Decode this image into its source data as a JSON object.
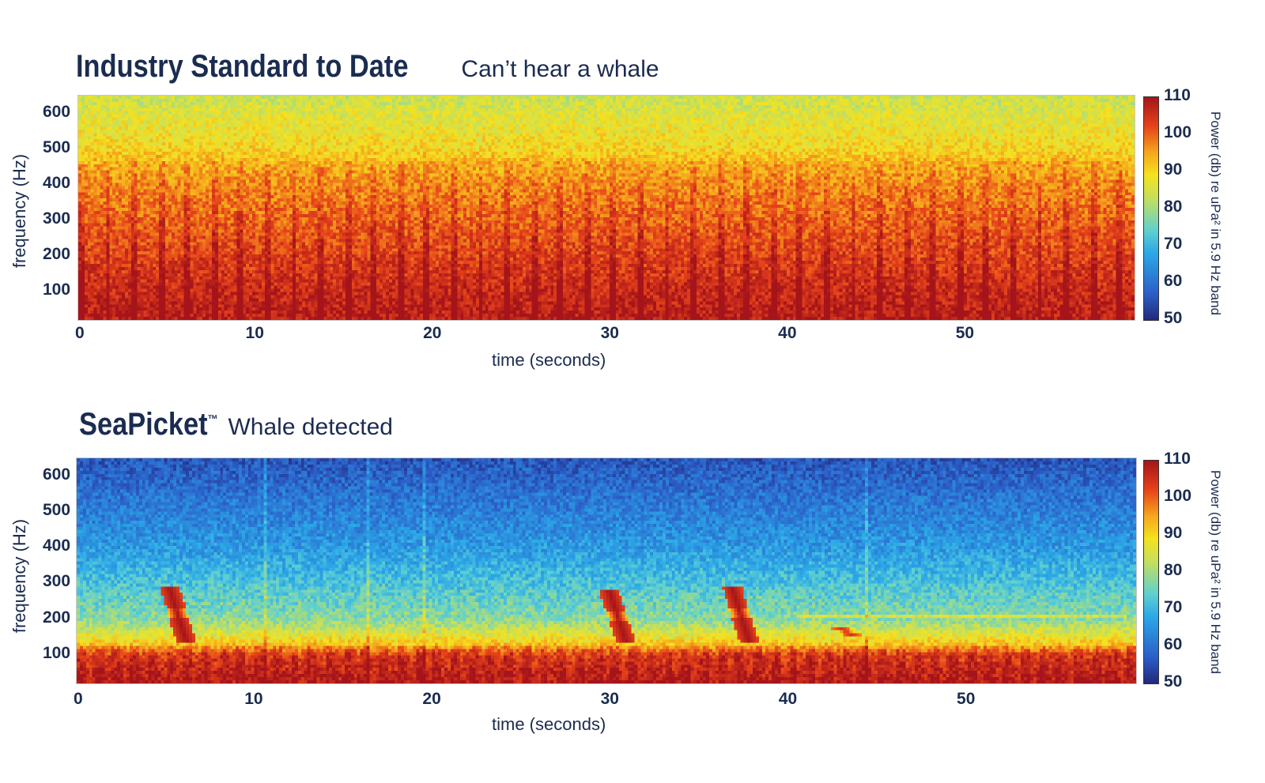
{
  "chart_data": [
    {
      "type": "heatmap",
      "title": "Industry Standard to Date",
      "subtitle": "Can’t hear a whale",
      "xlabel": "time (seconds)",
      "ylabel": "frequency (Hz)",
      "x_ticks": [
        0,
        10,
        20,
        30,
        40,
        50
      ],
      "y_ticks": [
        100,
        200,
        300,
        400,
        500,
        600
      ],
      "xlim": [
        0,
        59.5
      ],
      "ylim": [
        20,
        650
      ],
      "colorbar": {
        "label": "Power (db) re uPa² in 5.9 Hz band",
        "ticks": [
          50,
          60,
          70,
          80,
          90,
          100,
          110
        ],
        "range": [
          50,
          110
        ],
        "colormap": "jet"
      },
      "noise_profile": {
        "mean_power_by_frequency": [
          [
            20,
            108
          ],
          [
            100,
            106
          ],
          [
            200,
            103
          ],
          [
            300,
            100
          ],
          [
            400,
            97
          ],
          [
            460,
            94
          ],
          [
            500,
            90
          ],
          [
            600,
            86
          ],
          [
            650,
            84
          ]
        ],
        "periodic_dark_bands_every_seconds": 1.5
      }
    },
    {
      "type": "heatmap",
      "title": "SeaPicket™",
      "subtitle": "Whale detected",
      "xlabel": "time (seconds)",
      "ylabel": "frequency (Hz)",
      "x_ticks": [
        0,
        10,
        20,
        30,
        40,
        50
      ],
      "y_ticks": [
        100,
        200,
        300,
        400,
        500,
        600
      ],
      "xlim": [
        0,
        59.5
      ],
      "ylim": [
        20,
        650
      ],
      "colorbar": {
        "label": "Power (db) re uPa² in 5.9 Hz band",
        "ticks": [
          50,
          60,
          70,
          80,
          90,
          100,
          110
        ],
        "range": [
          50,
          110
        ],
        "colormap": "jet"
      },
      "noise_profile": {
        "mean_power_by_frequency": [
          [
            20,
            108
          ],
          [
            100,
            103
          ],
          [
            130,
            92
          ],
          [
            200,
            78
          ],
          [
            300,
            72
          ],
          [
            400,
            66
          ],
          [
            500,
            62
          ],
          [
            600,
            58
          ],
          [
            650,
            56
          ]
        ]
      },
      "whale_calls": [
        {
          "time": 5.6,
          "freq_low": 130,
          "freq_high": 290,
          "power": 110
        },
        {
          "time": 30.3,
          "freq_low": 130,
          "freq_high": 280,
          "power": 110
        },
        {
          "time": 37.2,
          "freq_low": 130,
          "freq_high": 290,
          "power": 110
        },
        {
          "time": 43.1,
          "freq_low": 150,
          "freq_high": 180,
          "power": 105
        }
      ]
    }
  ]
}
